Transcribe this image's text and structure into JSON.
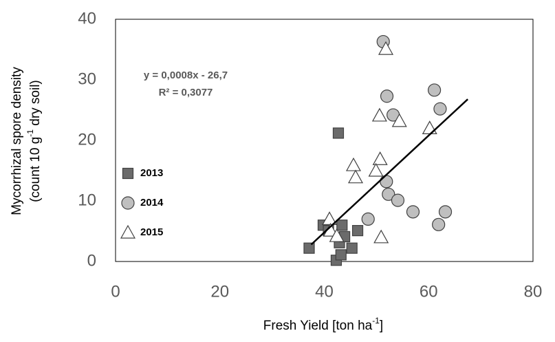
{
  "chart_data": {
    "type": "scatter",
    "xlabel": [
      "Fresh Yield [ton ha",
      "-1",
      "]"
    ],
    "ylabel": {
      "line1": "Mycorrhizal spore density",
      "line2": [
        "(count 10 g",
        "-1",
        " dry soil)"
      ]
    },
    "annotation": [
      "y = 0,0008x - 26,7",
      "R² = 0,3077"
    ],
    "xlim": [
      0,
      80
    ],
    "ylim": [
      0,
      40
    ],
    "xticks": [
      0,
      20,
      40,
      60,
      80
    ],
    "yticks": [
      0,
      10,
      20,
      30,
      40
    ],
    "grid": false,
    "legend": "left",
    "series": [
      {
        "name": "2013",
        "marker": "square",
        "color": "#6b6b6b",
        "x": [
          37.1,
          39.8,
          40.8,
          42.7,
          42.3,
          42.9,
          43.4,
          43.2,
          43.9,
          45.3,
          46.4
        ],
        "values": [
          2.2,
          6.0,
          5.1,
          21.2,
          0.2,
          3.1,
          6.0,
          1.1,
          4.1,
          2.2,
          5.1
        ]
      },
      {
        "name": "2014",
        "marker": "circle",
        "color": "#bfbfbf",
        "x": [
          51.3,
          52.0,
          53.2,
          61.1,
          62.2,
          51.9,
          52.3,
          54.1,
          48.4,
          57.0,
          63.2,
          61.9
        ],
        "values": [
          36.3,
          27.3,
          24.2,
          28.3,
          25.2,
          13.2,
          11.1,
          10.1,
          7.0,
          8.2,
          8.2,
          6.1
        ]
      },
      {
        "name": "2015",
        "marker": "triangle",
        "color": "#ffffff",
        "x": [
          51.8,
          50.6,
          54.4,
          60.2,
          45.6,
          46.0,
          50.7,
          49.9,
          41.0,
          41.2,
          42.4,
          50.9
        ],
        "values": [
          35.1,
          24.1,
          23.2,
          22.0,
          15.9,
          13.9,
          16.9,
          15.0,
          7.0,
          5.1,
          4.2,
          4.0
        ]
      }
    ],
    "trendline": {
      "x": [
        37.5,
        67.5
      ],
      "y": [
        2.8,
        26.8
      ],
      "color": "#000000"
    }
  }
}
